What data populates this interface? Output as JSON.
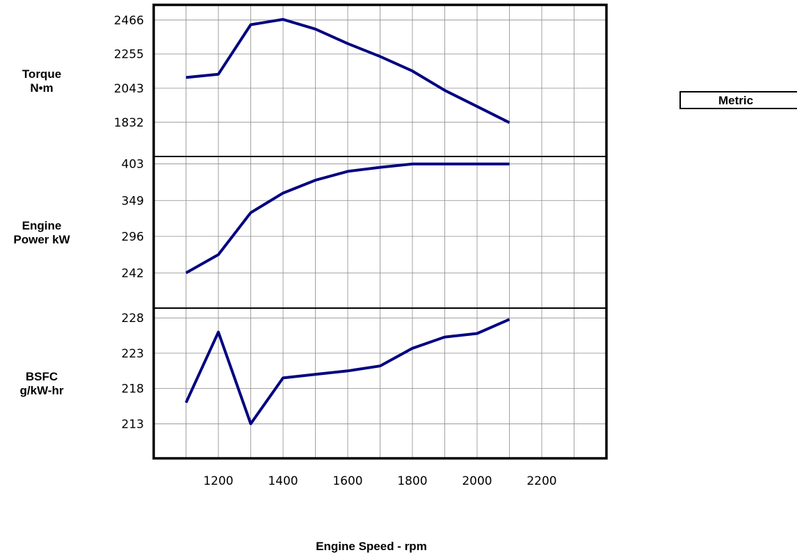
{
  "unit_system": "Metric",
  "chart_data": {
    "type": "line",
    "xlabel": "Engine Speed - rpm",
    "xlim": [
      1000,
      2400
    ],
    "x_ticks": [
      1200,
      1400,
      1600,
      1800,
      2000,
      2200
    ],
    "grid": true,
    "series_color": "#000080",
    "panels": [
      {
        "ylabel": [
          "Torque",
          "N•m"
        ],
        "ylim": [
          1620,
          2560
        ],
        "y_ticks": [
          1832,
          2043,
          2255,
          2466
        ],
        "x": [
          1100,
          1200,
          1300,
          1400,
          1500,
          1600,
          1700,
          1800,
          1900,
          2000,
          2100
        ],
        "values": [
          2110,
          2130,
          2437,
          2470,
          2410,
          2320,
          2240,
          2150,
          2030,
          1930,
          1830
        ]
      },
      {
        "ylabel": [
          "Engine",
          "Power kW"
        ],
        "ylim": [
          190,
          414
        ],
        "y_ticks": [
          242,
          296,
          349,
          403
        ],
        "x": [
          1100,
          1200,
          1300,
          1400,
          1500,
          1600,
          1700,
          1800,
          1900,
          2000,
          2100
        ],
        "values": [
          242,
          269,
          331,
          360,
          379,
          392,
          398,
          403,
          403,
          403,
          403
        ]
      },
      {
        "ylabel": [
          "BSFC",
          "g/kW-hr"
        ],
        "ylim": [
          208.1,
          229.4
        ],
        "y_ticks": [
          213,
          218,
          223,
          228
        ],
        "x": [
          1100,
          1200,
          1300,
          1400,
          1500,
          1600,
          1700,
          1800,
          1900,
          2000,
          2100
        ],
        "values": [
          216.0,
          226.0,
          213.0,
          219.5,
          220.0,
          220.5,
          221.2,
          223.7,
          225.3,
          225.8,
          227.8
        ]
      }
    ]
  }
}
